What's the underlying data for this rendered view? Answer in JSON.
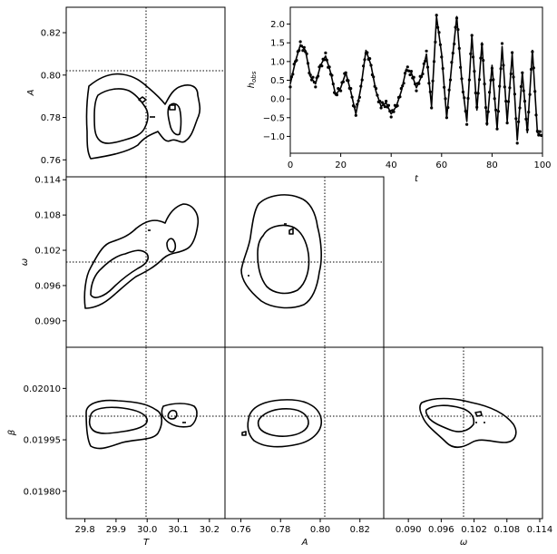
{
  "figure": {
    "truth_lines": {
      "T": 30.0,
      "A": 0.8,
      "omega": 0.1,
      "beta": 0.02
    }
  },
  "chart_data": [
    {
      "type": "line",
      "id": "timeseries",
      "xlabel": "t",
      "ylabel": "h_obs",
      "xlim": [
        0,
        100
      ],
      "ylim": [
        -1.45,
        2.45
      ],
      "xticks": [
        "0",
        "20",
        "40",
        "60",
        "80",
        "100"
      ],
      "yticks": [
        "−1.0",
        "−0.5",
        "0.0",
        "0.5",
        "1.0",
        "1.5",
        "2.0"
      ],
      "series": [
        {
          "name": "",
          "values_desc": "model curve",
          "x": [
            0,
            2,
            4,
            6,
            8,
            10,
            12,
            14,
            16,
            18,
            20,
            22,
            24,
            26,
            28,
            30,
            32,
            34,
            36,
            38,
            40,
            42,
            44,
            46,
            48,
            50,
            52,
            54,
            56,
            58,
            60,
            62,
            64,
            66,
            68,
            70,
            72,
            74,
            76,
            78,
            80,
            82,
            84,
            86,
            88,
            90,
            92,
            94,
            96,
            98,
            100
          ],
          "y": [
            0.4,
            1.0,
            1.45,
            1.3,
            0.6,
            0.4,
            0.9,
            1.15,
            0.7,
            0.1,
            0.3,
            0.7,
            0.2,
            -0.4,
            0.3,
            1.3,
            0.9,
            0.2,
            -0.2,
            -0.1,
            -0.4,
            -0.2,
            0.2,
            0.8,
            0.7,
            0.3,
            0.6,
            1.2,
            -0.2,
            2.2,
            1.2,
            -0.5,
            0.9,
            2.2,
            0.5,
            -0.6,
            1.7,
            -0.3,
            1.5,
            -0.7,
            0.9,
            -0.8,
            1.4,
            -0.6,
            1.2,
            -1.1,
            0.7,
            -0.9,
            1.3,
            -0.9,
            -1.0
          ]
        }
      ]
    },
    {
      "type": "contour",
      "id": "T-A",
      "xlabel": "T",
      "ylabel": "A",
      "xlim": [
        29.74,
        30.25
      ],
      "ylim": [
        0.752,
        0.832
      ],
      "yticks": [
        "0.76",
        "0.78",
        "0.80",
        "0.82"
      ]
    },
    {
      "type": "contour",
      "id": "T-omega",
      "xlabel": "T",
      "ylabel": "ω",
      "xlim": [
        29.74,
        30.25
      ],
      "ylim": [
        0.0855,
        0.1145
      ],
      "yticks": [
        "0.090",
        "0.096",
        "0.102",
        "0.108",
        "0.114"
      ]
    },
    {
      "type": "contour",
      "id": "A-omega",
      "xlabel": "A",
      "ylabel": "ω",
      "xlim": [
        0.752,
        0.832
      ],
      "ylim": [
        0.0855,
        0.1145
      ]
    },
    {
      "type": "contour",
      "id": "T-beta",
      "xlabel": "T",
      "ylabel": "β",
      "xlim": [
        29.74,
        30.25
      ],
      "ylim": [
        0.01972,
        0.02022
      ],
      "xticks": [
        "29.8",
        "29.9",
        "30.0",
        "30.1",
        "30.2"
      ],
      "yticks": [
        "0.01980",
        "0.01995",
        "0.02010"
      ]
    },
    {
      "type": "contour",
      "id": "A-beta",
      "xlabel": "A",
      "ylabel": "β",
      "xlim": [
        0.752,
        0.832
      ],
      "ylim": [
        0.01972,
        0.02022
      ],
      "xticks": [
        "0.76",
        "0.78",
        "0.80",
        "0.82"
      ]
    },
    {
      "type": "contour",
      "id": "omega-beta",
      "xlabel": "ω",
      "ylabel": "β",
      "xlim": [
        0.0855,
        0.1145
      ],
      "ylim": [
        0.01972,
        0.02022
      ],
      "xticks": [
        "0.090",
        "0.096",
        "0.102",
        "0.108",
        "0.114"
      ]
    }
  ]
}
